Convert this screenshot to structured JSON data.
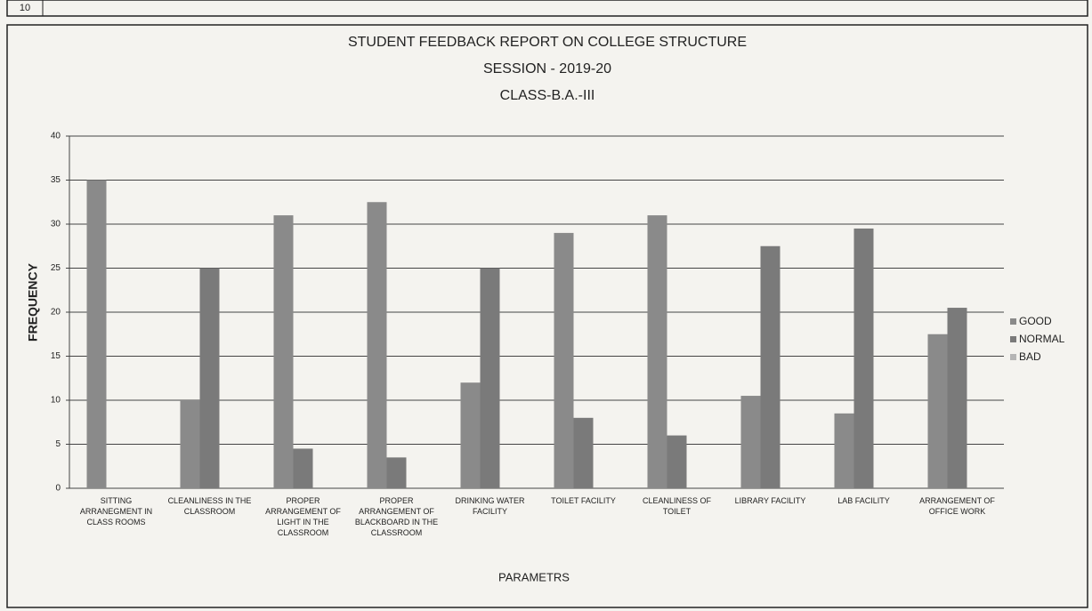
{
  "table": {
    "rows": [
      [
        "10"
      ]
    ]
  },
  "chart_data": {
    "type": "bar",
    "title": "STUDENT FEEDBACK REPORT ON COLLEGE STRUCTURE",
    "subtitle": "SESSION - 2019-20",
    "class_label": "CLASS-B.A.-III",
    "y_label": "FREQUENCY",
    "x_label": "PARAMETRS",
    "categories": [
      "SITTING ARRANEGMENT IN CLASS ROOMS",
      "CLEANLINESS IN THE CLASSROOM",
      "PROPER ARRANGEMENT OF LIGHT IN THE CLASSROOM",
      "PROPER ARRANGEMENT OF BLACKBOARD IN THE CLASSROOM",
      "DRINKING WATER FACILITY",
      "TOILET FACILITY",
      "CLEANLINESS OF TOILET",
      "LIBRARY FACILITY",
      "LAB FACILITY",
      "ARRANGEMENT OF OFFICE WORK"
    ],
    "series": [
      {
        "name": "GOOD",
        "color": "#8a8a8a",
        "values": [
          35,
          10,
          31,
          32.5,
          12,
          29,
          31,
          10.5,
          8.5,
          17.5
        ]
      },
      {
        "name": "NORMAL",
        "color": "#7a7a7a",
        "values": [
          0,
          25,
          4.5,
          3.5,
          25,
          8,
          6,
          27.5,
          29.5,
          20.5
        ]
      },
      {
        "name": "BAD",
        "color": "#b5b5b5",
        "values": [
          0,
          0,
          0,
          0,
          0,
          0,
          0,
          0,
          0,
          0
        ]
      }
    ],
    "ylim": [
      0,
      40
    ],
    "yticks": [
      0,
      5,
      10,
      15,
      20,
      25,
      30,
      35,
      40
    ],
    "grid": true,
    "legend": "right"
  }
}
